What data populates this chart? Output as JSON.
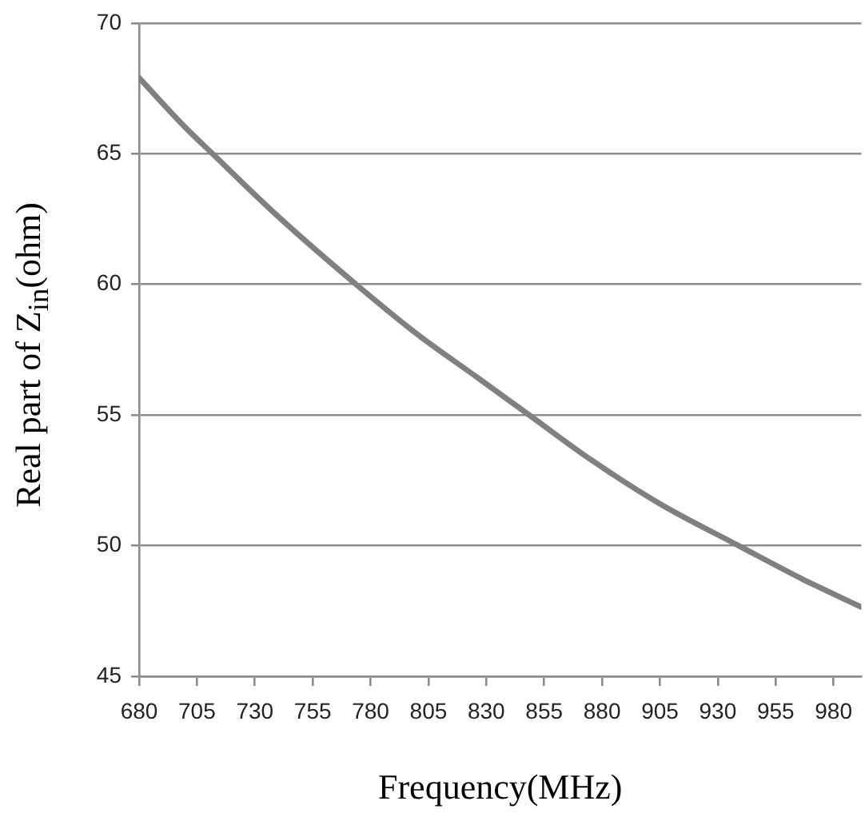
{
  "chart_data": {
    "type": "line",
    "xlabel": "Frequency(MHz)",
    "ylabel": "Real part of Z$_{in}$(ohm)",
    "x": [
      680,
      700,
      711.7,
      740,
      773.7,
      800,
      826.7,
      848.5,
      875,
      905,
      939,
      967,
      992
    ],
    "series": [
      {
        "color": "#808080",
        "values": [
          67.9,
          66.0,
          65,
          62.6,
          60,
          58.1,
          56.4,
          55,
          53.3,
          51.6,
          50,
          48.7,
          47.65
        ]
      }
    ],
    "xlim": [
      680,
      992
    ],
    "xticks": [
      680,
      705,
      730,
      755,
      780,
      805,
      830,
      855,
      880,
      905,
      930,
      955,
      980
    ],
    "ylim": [
      45,
      70
    ],
    "yticks": [
      45,
      50,
      55,
      60,
      65,
      70
    ],
    "grid": "y",
    "legend": false,
    "marker": "none",
    "line_style": "solid"
  }
}
